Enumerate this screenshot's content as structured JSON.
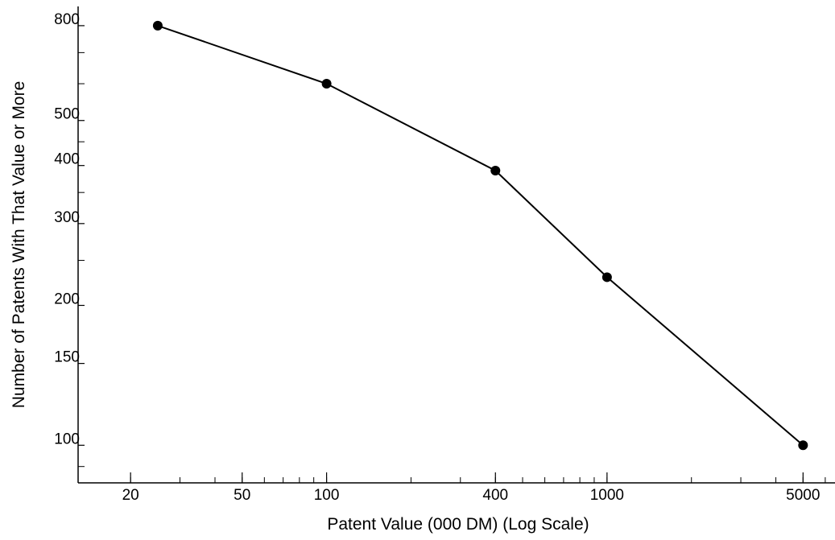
{
  "chart_data": {
    "type": "line",
    "xlabel": "Patent Value (000 DM) (Log Scale)",
    "ylabel": "Number of Patents With That Value or More",
    "x_scale": "log",
    "y_scale": "log",
    "xlim": [
      13,
      6500
    ],
    "ylim": [
      83,
      880
    ],
    "x_ticks": [
      20,
      50,
      100,
      400,
      1000,
      5000
    ],
    "x_tick_labels": [
      "20",
      "50",
      "100",
      "400",
      "1000",
      "5000"
    ],
    "y_ticks": [
      100,
      150,
      200,
      300,
      400,
      500,
      800
    ],
    "y_tick_labels": [
      "100",
      "150",
      "200",
      "300",
      "400",
      "500",
      "800"
    ],
    "grid": false,
    "series": [
      {
        "x": [
          25,
          100,
          400,
          1000,
          5000
        ],
        "y": [
          800,
          600,
          390,
          230,
          100
        ]
      }
    ]
  }
}
